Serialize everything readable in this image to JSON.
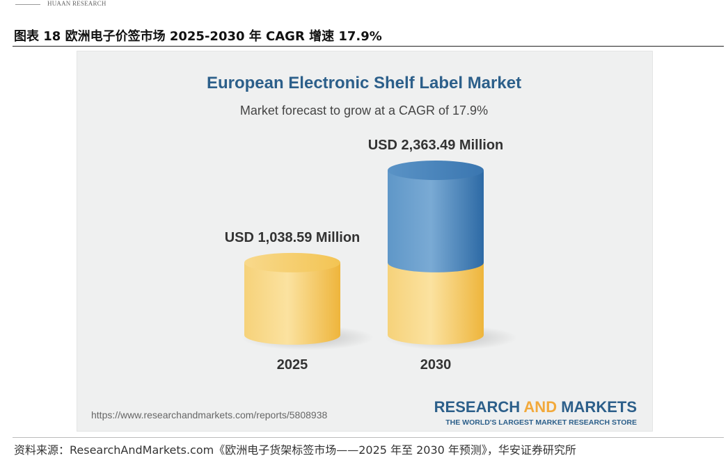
{
  "header": {
    "brand": "HUAAN RESEARCH"
  },
  "figure": {
    "title": "图表 18 欧洲电子价签市场 2025-2030 年 CAGR 增速 17.9%"
  },
  "chart_data": {
    "type": "bar",
    "title": "European Electronic Shelf Label Market",
    "subtitle": "Market forecast to grow at a CAGR of 17.9%",
    "categories": [
      "2025",
      "2030"
    ],
    "series": [
      {
        "values": [
          1038.59,
          1038.59
        ]
      },
      {
        "values": [
          0,
          1324.9
        ]
      }
    ],
    "totals": [
      1038.59,
      2363.49
    ],
    "value_labels": [
      "USD 1,038.59 Million",
      "USD 2,363.49 Million"
    ],
    "ylim": [
      0,
      2363.49
    ],
    "colors": {
      "base": "#f2c14e",
      "growth": "#3f7fb6",
      "title": "#2c5f8a"
    },
    "url": "https://www.researchandmarkets.com/reports/5808938",
    "brand": {
      "part1": "RESEARCH",
      "part2": "AND",
      "part3": "MARKETS",
      "tagline": "THE WORLD'S LARGEST MARKET RESEARCH STORE"
    }
  },
  "footer": {
    "source": "资料来源：ResearchAndMarkets.com《欧洲电子货架标签市场——2025 年至 2030 年预测》，华安证券研究所"
  }
}
